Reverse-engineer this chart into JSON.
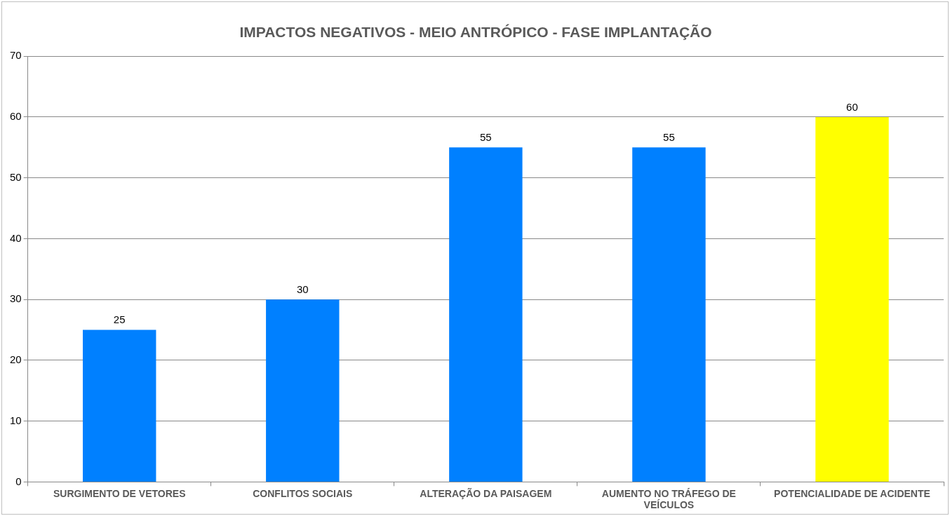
{
  "chart_data": {
    "type": "bar",
    "title": "IMPACTOS NEGATIVOS - MEIO ANTRÓPICO - FASE IMPLANTAÇÃO",
    "categories": [
      "SURGIMENTO DE VETORES",
      "CONFLITOS SOCIAIS",
      "ALTERAÇÃO DA PAISAGEM",
      "AUMENTO NO TRÁFEGO DE VEÍCULOS",
      "POTENCIALIDADE DE ACIDENTE"
    ],
    "values": [
      25,
      30,
      55,
      55,
      60
    ],
    "colors": [
      "#0080ff",
      "#0080ff",
      "#0080ff",
      "#0080ff",
      "#ffff00"
    ],
    "ylim": [
      0,
      70
    ],
    "yticks": [
      0,
      10,
      20,
      30,
      40,
      50,
      60,
      70
    ],
    "grid": "y",
    "legend": false,
    "data_labels": true
  }
}
